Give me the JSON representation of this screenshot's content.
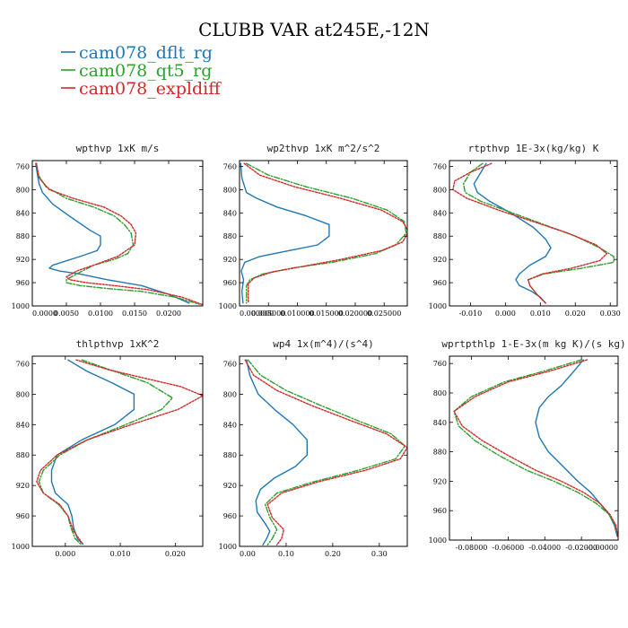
{
  "figure": {
    "title": "CLUBB VAR at245E,-12N",
    "legend": [
      {
        "name": "cam078_dflt_rg",
        "color": "#1f77b4",
        "dash": "solid"
      },
      {
        "name": "cam078_qt5_rg",
        "color": "#2ca02c",
        "dash": "dashdot"
      },
      {
        "name": "cam078_expldiff",
        "color": "#d62728",
        "dash": "dotted"
      }
    ]
  },
  "chart_data": [
    {
      "type": "line",
      "title": "wpthvp  1xK m/s",
      "xlim": [
        0.0,
        0.025
      ],
      "ylim": [
        1000,
        750
      ],
      "yticks": [
        760,
        800,
        840,
        880,
        920,
        960,
        1000
      ],
      "xticks": [
        0.0,
        0.005,
        0.01,
        0.015,
        0.02
      ],
      "xtick_labels": [
        "0.0000",
        "0.0050",
        "0.0100",
        "0.0150",
        "0.0200"
      ],
      "series": [
        {
          "name": "cam078_dflt_rg",
          "x": [
            0.0005,
            0.0007,
            0.001,
            0.0015,
            0.003,
            0.006,
            0.0085,
            0.01,
            0.01,
            0.0095,
            0.007,
            0.003,
            0.0025,
            0.004,
            0.007,
            0.011,
            0.016,
            0.02,
            0.023
          ],
          "y": [
            755,
            770,
            790,
            805,
            825,
            850,
            870,
            880,
            895,
            905,
            915,
            930,
            935,
            940,
            945,
            955,
            965,
            980,
            995
          ]
        },
        {
          "name": "cam078_qt5_rg",
          "x": [
            0.0006,
            0.0009,
            0.002,
            0.005,
            0.009,
            0.012,
            0.0135,
            0.0145,
            0.0148,
            0.014,
            0.012,
            0.009,
            0.0065,
            0.005,
            0.005,
            0.007,
            0.011,
            0.016,
            0.021,
            0.0245
          ],
          "y": [
            755,
            775,
            795,
            815,
            830,
            845,
            860,
            875,
            895,
            910,
            920,
            930,
            945,
            955,
            960,
            965,
            970,
            975,
            985,
            997
          ]
        },
        {
          "name": "cam078_expldiff",
          "x": [
            0.0006,
            0.001,
            0.0025,
            0.006,
            0.0105,
            0.013,
            0.0145,
            0.0152,
            0.015,
            0.0125,
            0.009,
            0.0065,
            0.005,
            0.0055,
            0.008,
            0.012,
            0.017,
            0.022,
            0.025
          ],
          "y": [
            755,
            780,
            800,
            815,
            830,
            845,
            860,
            875,
            895,
            915,
            930,
            940,
            950,
            955,
            960,
            965,
            972,
            985,
            998
          ]
        }
      ]
    },
    {
      "type": "line",
      "title": "wp2thvp  1xK m^2/s^2",
      "xlim": [
        0.0,
        0.029
      ],
      "ylim": [
        1000,
        750
      ],
      "yticks": [
        760,
        800,
        840,
        880,
        920,
        960,
        1000
      ],
      "xticks": [
        0.0,
        0.005,
        0.01,
        0.015,
        0.02,
        0.025
      ],
      "xtick_labels": [
        "0.000000",
        "0.005000",
        "0.010000",
        "0.015000",
        "0.020000",
        "0.025000"
      ],
      "series": [
        {
          "name": "cam078_dflt_rg",
          "x": [
            0.0002,
            0.0004,
            0.0012,
            0.003,
            0.0065,
            0.0115,
            0.0155,
            0.0155,
            0.0135,
            0.0085,
            0.0035,
            0.0009,
            0.0003,
            0.0007,
            0.0004,
            0.0006
          ],
          "y": [
            755,
            780,
            805,
            815,
            830,
            845,
            860,
            880,
            895,
            905,
            915,
            925,
            940,
            955,
            975,
            995
          ]
        },
        {
          "name": "cam078_qt5_rg",
          "x": [
            0.0012,
            0.005,
            0.0115,
            0.0195,
            0.0255,
            0.0285,
            0.0288,
            0.027,
            0.0235,
            0.016,
            0.009,
            0.004,
            0.0018,
            0.0012,
            0.0012,
            0.0012
          ],
          "y": [
            755,
            775,
            795,
            815,
            835,
            855,
            875,
            895,
            910,
            925,
            935,
            945,
            955,
            965,
            980,
            995
          ]
        },
        {
          "name": "cam078_expldiff",
          "x": [
            0.0008,
            0.0035,
            0.0095,
            0.0175,
            0.0245,
            0.0282,
            0.0292,
            0.0282,
            0.0245,
            0.0175,
            0.011,
            0.0055,
            0.0025,
            0.0015,
            0.0015,
            0.0015
          ],
          "y": [
            755,
            775,
            795,
            815,
            835,
            855,
            872,
            890,
            905,
            920,
            932,
            942,
            952,
            962,
            978,
            995
          ]
        }
      ]
    },
    {
      "type": "line",
      "title": "rtpthvp  1E-3x(kg/kg) K",
      "xlim": [
        -0.016,
        0.032
      ],
      "ylim": [
        1000,
        750
      ],
      "yticks": [
        760,
        800,
        840,
        880,
        920,
        960,
        1000
      ],
      "xticks": [
        -0.01,
        0.0,
        0.01,
        0.02,
        0.03
      ],
      "xtick_labels": [
        "-0.010",
        "0.000",
        "0.010",
        "0.020",
        "0.030"
      ],
      "series": [
        {
          "name": "cam078_dflt_rg",
          "x": [
            -0.0055,
            -0.007,
            -0.009,
            -0.008,
            -0.0045,
            0.0015,
            0.008,
            0.0115,
            0.013,
            0.0115,
            0.007,
            0.004,
            0.003,
            0.004,
            0.0075,
            0.01,
            0.0115
          ],
          "y": [
            755,
            770,
            790,
            805,
            820,
            840,
            865,
            885,
            900,
            915,
            930,
            945,
            955,
            965,
            975,
            985,
            995
          ]
        },
        {
          "name": "cam078_qt5_rg",
          "x": [
            -0.0065,
            -0.01,
            -0.012,
            -0.0115,
            -0.007,
            0.002,
            0.011,
            0.02,
            0.027,
            0.031,
            0.031,
            0.022,
            0.011,
            0.0065,
            0.007,
            0.009,
            0.0115
          ],
          "y": [
            755,
            770,
            790,
            805,
            820,
            840,
            860,
            880,
            900,
            915,
            925,
            935,
            945,
            955,
            965,
            980,
            995
          ]
        },
        {
          "name": "cam078_expldiff",
          "x": [
            -0.004,
            -0.01,
            -0.0145,
            -0.015,
            -0.011,
            -0.002,
            0.008,
            0.018,
            0.026,
            0.029,
            0.027,
            0.019,
            0.0105,
            0.0065,
            0.007,
            0.009,
            0.0115
          ],
          "y": [
            755,
            770,
            785,
            800,
            815,
            835,
            855,
            875,
            895,
            910,
            922,
            935,
            945,
            955,
            965,
            980,
            995
          ]
        }
      ]
    },
    {
      "type": "line",
      "title": "thlpthvp  1xK^2",
      "xlim": [
        -0.006,
        0.025
      ],
      "ylim": [
        1000,
        750
      ],
      "yticks": [
        760,
        800,
        840,
        880,
        920,
        960,
        1000
      ],
      "xticks": [
        0.0,
        0.01,
        0.02
      ],
      "xtick_labels": [
        "0.000",
        "0.010",
        "0.020"
      ],
      "series": [
        {
          "name": "cam078_dflt_rg",
          "x": [
            0.0005,
            0.004,
            0.0085,
            0.0125,
            0.0125,
            0.009,
            0.003,
            -0.0015,
            -0.0025,
            -0.0025,
            -0.0018,
            0.0005,
            0.0012,
            0.0015,
            0.0022,
            0.0032
          ],
          "y": [
            755,
            770,
            785,
            800,
            820,
            840,
            860,
            880,
            900,
            915,
            930,
            945,
            960,
            975,
            990,
            997
          ]
        },
        {
          "name": "cam078_qt5_rg",
          "x": [
            0.003,
            0.009,
            0.015,
            0.0195,
            0.0175,
            0.011,
            0.004,
            -0.001,
            -0.004,
            -0.0048,
            -0.004,
            -0.0012,
            0.0005,
            0.001,
            0.0018,
            0.0028
          ],
          "y": [
            755,
            770,
            785,
            805,
            820,
            840,
            860,
            880,
            900,
            915,
            930,
            945,
            960,
            975,
            990,
            997
          ]
        },
        {
          "name": "cam078_expldiff",
          "x": [
            0.002,
            0.008,
            0.015,
            0.021,
            0.025,
            0.0205,
            0.012,
            0.004,
            -0.0015,
            -0.0045,
            -0.0052,
            -0.004,
            -0.001,
            0.0005,
            0.0015,
            0.0032
          ],
          "y": [
            755,
            768,
            780,
            790,
            802,
            820,
            840,
            860,
            880,
            900,
            915,
            930,
            945,
            960,
            980,
            997
          ]
        }
      ]
    },
    {
      "type": "line",
      "title": "wp4  1x(m^4)/(s^4)",
      "xlim": [
        0.0,
        0.36
      ],
      "ylim": [
        1000,
        750
      ],
      "yticks": [
        760,
        800,
        840,
        880,
        920,
        960,
        1000
      ],
      "xticks": [
        0.0,
        0.1,
        0.2,
        0.3
      ],
      "xtick_labels": [
        "0.00",
        "0.10",
        "0.20",
        "0.30"
      ],
      "series": [
        {
          "name": "cam078_dflt_rg",
          "x": [
            0.015,
            0.022,
            0.04,
            0.075,
            0.115,
            0.145,
            0.145,
            0.12,
            0.075,
            0.045,
            0.035,
            0.038,
            0.055,
            0.065,
            0.058,
            0.05
          ],
          "y": [
            755,
            775,
            800,
            820,
            840,
            860,
            880,
            895,
            910,
            925,
            940,
            955,
            970,
            980,
            990,
            998
          ]
        },
        {
          "name": "cam078_qt5_rg",
          "x": [
            0.018,
            0.045,
            0.1,
            0.175,
            0.255,
            0.325,
            0.355,
            0.335,
            0.255,
            0.16,
            0.08,
            0.055,
            0.065,
            0.08,
            0.07,
            0.06
          ],
          "y": [
            755,
            775,
            795,
            815,
            835,
            852,
            868,
            885,
            900,
            915,
            930,
            945,
            962,
            978,
            990,
            998
          ]
        },
        {
          "name": "cam078_expldiff",
          "x": [
            0.012,
            0.03,
            0.08,
            0.155,
            0.24,
            0.315,
            0.36,
            0.345,
            0.27,
            0.17,
            0.09,
            0.06,
            0.07,
            0.095,
            0.09,
            0.08
          ],
          "y": [
            755,
            775,
            795,
            815,
            835,
            852,
            870,
            885,
            900,
            915,
            930,
            945,
            962,
            978,
            990,
            998
          ]
        }
      ]
    },
    {
      "type": "line",
      "title": "wprtpthlp  1-E-3x(m kg K)/(s kg)",
      "xlim": [
        -0.092,
        0.0
      ],
      "ylim": [
        1000,
        750
      ],
      "yticks": [
        760,
        800,
        840,
        880,
        920,
        960,
        1000
      ],
      "xticks": [
        -0.08,
        -0.06,
        -0.04,
        -0.02,
        0.0
      ],
      "xtick_labels": [
        "-0.08000",
        "-0.06000",
        "-0.04000",
        "-0.02000",
        "-0.00000"
      ],
      "series": [
        {
          "name": "cam078_dflt_rg",
          "x": [
            -0.019,
            -0.024,
            -0.031,
            -0.038,
            -0.043,
            -0.045,
            -0.043,
            -0.038,
            -0.03,
            -0.022,
            -0.015,
            -0.01,
            -0.005,
            -0.002,
            -0.0005
          ],
          "y": [
            755,
            770,
            790,
            805,
            820,
            840,
            860,
            880,
            900,
            920,
            935,
            950,
            965,
            980,
            995
          ]
        },
        {
          "name": "cam078_qt5_rg",
          "x": [
            -0.02,
            -0.04,
            -0.062,
            -0.08,
            -0.0895,
            -0.087,
            -0.078,
            -0.065,
            -0.05,
            -0.035,
            -0.022,
            -0.012,
            -0.005,
            -0.0015,
            -0.0002
          ],
          "y": [
            755,
            770,
            785,
            805,
            825,
            845,
            865,
            885,
            905,
            920,
            935,
            950,
            965,
            980,
            995
          ]
        },
        {
          "name": "cam078_expldiff",
          "x": [
            -0.017,
            -0.037,
            -0.06,
            -0.078,
            -0.0895,
            -0.085,
            -0.074,
            -0.06,
            -0.045,
            -0.031,
            -0.019,
            -0.01,
            -0.0045,
            -0.0012,
            -0.0002
          ],
          "y": [
            755,
            770,
            785,
            805,
            825,
            845,
            865,
            885,
            905,
            920,
            935,
            950,
            965,
            980,
            995
          ]
        }
      ]
    }
  ]
}
